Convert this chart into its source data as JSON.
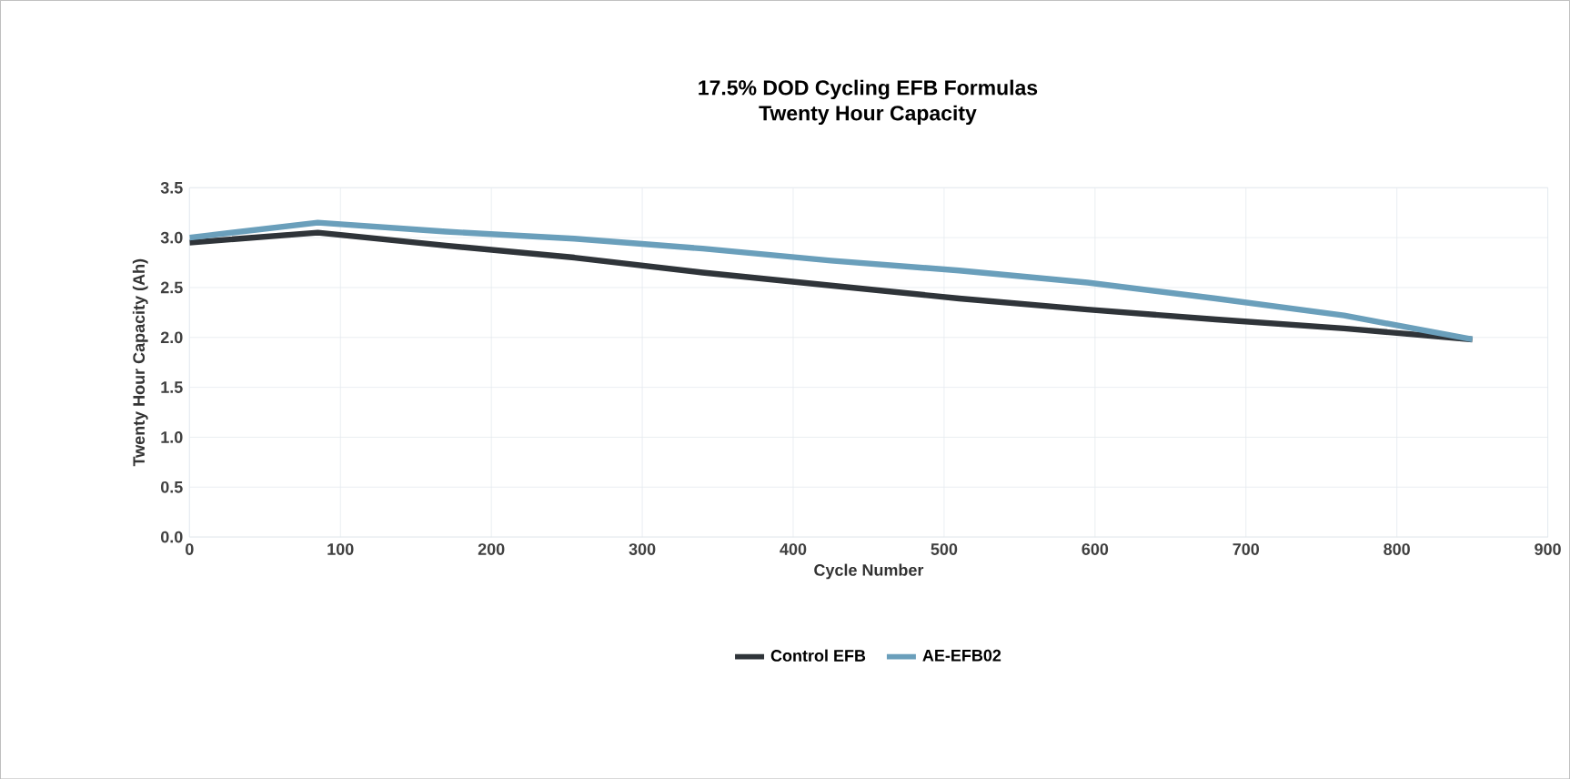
{
  "chart_data": {
    "type": "line",
    "title": "17.5% DOD Cycling EFB Formulas",
    "subtitle": "Twenty Hour Capacity",
    "xlabel": "Cycle Number",
    "ylabel": "Twenty Hour Capacity (Ah)",
    "x": [
      0,
      85,
      170,
      255,
      340,
      425,
      510,
      595,
      680,
      765,
      850
    ],
    "series": [
      {
        "name": "Control EFB",
        "color": "#2f3439",
        "values": [
          2.95,
          3.05,
          2.92,
          2.8,
          2.65,
          2.52,
          2.39,
          2.28,
          2.18,
          2.09,
          1.98
        ]
      },
      {
        "name": "AE-EFB02",
        "color": "#6a9fbb",
        "values": [
          3.0,
          3.15,
          3.06,
          2.99,
          2.89,
          2.77,
          2.67,
          2.55,
          2.39,
          2.22,
          1.98
        ]
      }
    ],
    "xlim": [
      0,
      900
    ],
    "xticks": [
      0,
      100,
      200,
      300,
      400,
      500,
      600,
      700,
      800,
      900
    ],
    "ylim": [
      0,
      3.5
    ],
    "yticks": [
      {
        "value": 0,
        "label": "0.0"
      },
      {
        "value": 0.5,
        "label": "0.5"
      },
      {
        "value": 1,
        "label": "1.0"
      },
      {
        "value": 1.5,
        "label": "1.5"
      },
      {
        "value": 2,
        "label": "2.0"
      },
      {
        "value": 2.5,
        "label": "2.5"
      },
      {
        "value": 3,
        "label": "3.0"
      },
      {
        "value": 3.5,
        "label": "3.5"
      }
    ],
    "grid": true,
    "legend": "bottom",
    "marker": "none",
    "line_style": "solid"
  }
}
